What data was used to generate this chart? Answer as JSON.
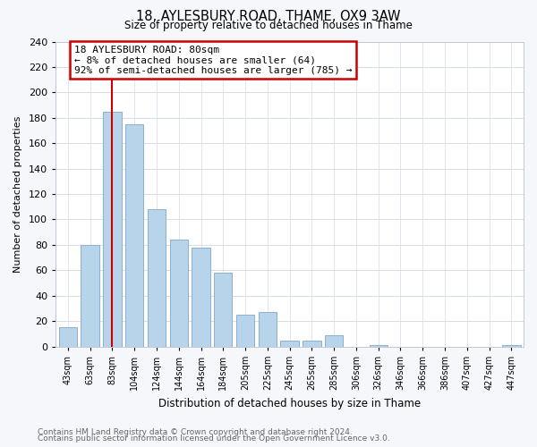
{
  "title": "18, AYLESBURY ROAD, THAME, OX9 3AW",
  "subtitle": "Size of property relative to detached houses in Thame",
  "xlabel": "Distribution of detached houses by size in Thame",
  "ylabel": "Number of detached properties",
  "bar_labels": [
    "43sqm",
    "63sqm",
    "83sqm",
    "104sqm",
    "124sqm",
    "144sqm",
    "164sqm",
    "184sqm",
    "205sqm",
    "225sqm",
    "245sqm",
    "265sqm",
    "285sqm",
    "306sqm",
    "326sqm",
    "346sqm",
    "366sqm",
    "386sqm",
    "407sqm",
    "427sqm",
    "447sqm"
  ],
  "bar_values": [
    15,
    80,
    185,
    175,
    108,
    84,
    78,
    58,
    25,
    27,
    5,
    5,
    9,
    0,
    1,
    0,
    0,
    0,
    0,
    0,
    1
  ],
  "bar_color": "#b8d4ea",
  "bar_edge_color": "#8ab0d0",
  "vline_x": 2,
  "vline_color": "#cc0000",
  "ylim": [
    0,
    240
  ],
  "yticks": [
    0,
    20,
    40,
    60,
    80,
    100,
    120,
    140,
    160,
    180,
    200,
    220,
    240
  ],
  "annotation_title": "18 AYLESBURY ROAD: 80sqm",
  "annotation_line1": "← 8% of detached houses are smaller (64)",
  "annotation_line2": "92% of semi-detached houses are larger (785) →",
  "box_color": "#cc0000",
  "footer_line1": "Contains HM Land Registry data © Crown copyright and database right 2024.",
  "footer_line2": "Contains public sector information licensed under the Open Government Licence v3.0.",
  "bg_color": "#f5f7fa",
  "plot_bg_color": "#ffffff",
  "grid_color": "#d4dce8"
}
